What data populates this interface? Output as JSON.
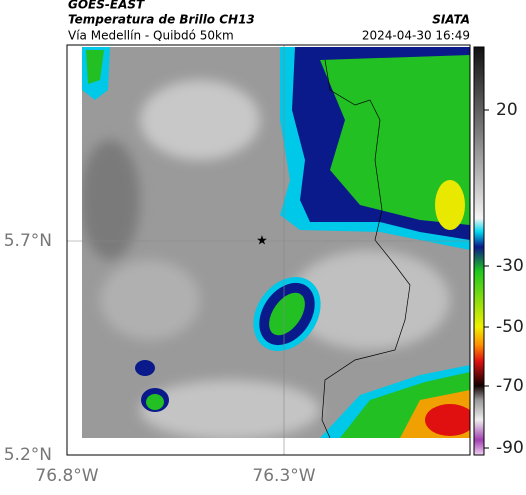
{
  "header": {
    "satellite": "GOES-EAST",
    "title": "Temperatura de Brillo CH13",
    "subtitle": "Vía Medellín - Quibdó 50km",
    "source": "SIATA",
    "datetime": "2024-04-30 16:49"
  },
  "map": {
    "lat_ticks": [
      "5.7°N",
      "5.2°N"
    ],
    "lon_ticks": [
      "76.8°W",
      "76.3°W"
    ]
  },
  "colorbar": {
    "ticks": [
      20,
      -30,
      -50,
      -70,
      -90
    ]
  }
}
